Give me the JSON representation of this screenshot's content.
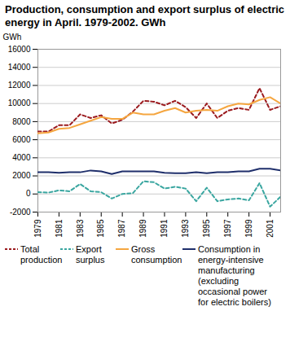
{
  "chart_data": {
    "type": "line",
    "title": "Production, consumption and export surplus of electric energy in April. 1979-2002. GWh",
    "ylabel": "GWh",
    "x": [
      1979,
      1980,
      1981,
      1982,
      1983,
      1984,
      1985,
      1986,
      1987,
      1988,
      1989,
      1990,
      1991,
      1992,
      1993,
      1994,
      1995,
      1996,
      1997,
      1998,
      1999,
      2000,
      2001,
      2002
    ],
    "xlim": [
      1979,
      2002
    ],
    "xticks": [
      1979,
      1981,
      1983,
      1985,
      1987,
      1989,
      1991,
      1993,
      1995,
      1997,
      1999,
      2001
    ],
    "ylim": [
      -2000,
      16000
    ],
    "yticks": [
      -2000,
      0,
      2000,
      4000,
      6000,
      8000,
      10000,
      12000,
      14000,
      16000
    ],
    "grid": true,
    "legend": "bottom",
    "series": [
      {
        "name": "Total production",
        "color": "#9b1b1f",
        "line_style": "dashed",
        "values": [
          6900,
          6900,
          7600,
          7600,
          8800,
          8400,
          8700,
          7800,
          8200,
          9100,
          10300,
          10200,
          9800,
          10300,
          9600,
          8400,
          10000,
          8400,
          9200,
          9500,
          9300,
          11700,
          9300,
          9700
        ]
      },
      {
        "name": "Export surplus",
        "color": "#3aa6a0",
        "line_style": "dashed",
        "values": [
          200,
          150,
          400,
          300,
          1100,
          300,
          200,
          -500,
          0,
          100,
          1400,
          1300,
          600,
          800,
          600,
          -800,
          700,
          -800,
          -600,
          -500,
          -700,
          1200,
          -1400,
          -300
        ]
      },
      {
        "name": "Gross consumption",
        "color": "#f5a640",
        "line_style": "solid",
        "values": [
          6700,
          6800,
          7200,
          7300,
          7700,
          8100,
          8500,
          8300,
          8300,
          9000,
          8800,
          8800,
          9200,
          9500,
          9000,
          9200,
          9300,
          9200,
          9700,
          10000,
          9900,
          10400,
          10700,
          10000
        ]
      },
      {
        "name": "Consumption in energy-intensive manufacturing (excluding occasional power for electric boilers)",
        "color": "#1f2f6b",
        "line_style": "solid",
        "values": [
          2400,
          2400,
          2350,
          2400,
          2400,
          2600,
          2500,
          2200,
          2500,
          2500,
          2500,
          2500,
          2350,
          2300,
          2300,
          2400,
          2300,
          2400,
          2400,
          2500,
          2500,
          2800,
          2800,
          2600
        ]
      }
    ]
  }
}
